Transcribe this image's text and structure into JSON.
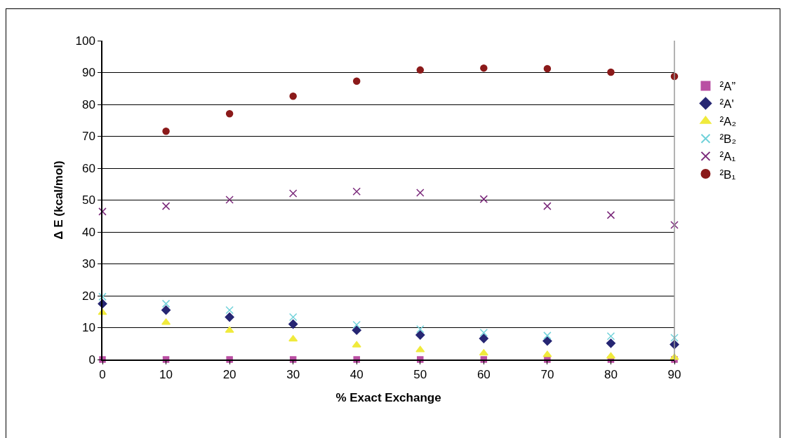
{
  "chart_data": {
    "type": "scatter",
    "xlabel": "% Exact Exchange",
    "ylabel": "Δ E (kcal/mol)",
    "x": [
      0,
      10,
      20,
      30,
      40,
      50,
      60,
      70,
      80,
      90
    ],
    "xlim": [
      0,
      90
    ],
    "xticks": [
      0,
      10,
      20,
      30,
      40,
      50,
      60,
      70,
      80,
      90
    ],
    "ylim": [
      0,
      100
    ],
    "yticks": [
      0,
      10,
      20,
      30,
      40,
      50,
      60,
      70,
      80,
      90,
      100
    ],
    "grid": "y",
    "legend": "right",
    "series": [
      {
        "name": "²A”",
        "color": "#b94fa3",
        "marker": "square",
        "values": [
          0,
          0,
          0,
          0,
          0,
          0,
          0,
          0,
          0,
          0
        ]
      },
      {
        "name": "²A'",
        "color": "#262673",
        "marker": "diamond",
        "values": [
          17.5,
          15.5,
          13.3,
          11.1,
          9.2,
          7.7,
          6.6,
          5.8,
          5.1,
          4.7
        ]
      },
      {
        "name": "²A₂",
        "color": "#f0ea3c",
        "marker": "triangle",
        "values": [
          14.7,
          11.6,
          9.1,
          6.4,
          4.5,
          3.0,
          2.0,
          1.5,
          1.0,
          0.6
        ]
      },
      {
        "name": "²B₂",
        "color": "#72d2da",
        "marker": "cross",
        "values": [
          19.7,
          17.5,
          15.5,
          13.3,
          10.9,
          9.5,
          8.4,
          7.5,
          7.3,
          6.8
        ]
      },
      {
        "name": "²A₁",
        "color": "#7b2a7b",
        "marker": "cross",
        "values": [
          46.4,
          48.1,
          50.1,
          52.1,
          52.7,
          52.3,
          50.3,
          48.1,
          45.3,
          42.2
        ]
      },
      {
        "name": "²B₁",
        "color": "#8b1a1a",
        "marker": "circle",
        "values": [
          null,
          71.6,
          77.1,
          82.6,
          87.3,
          90.8,
          91.4,
          91.2,
          90.1,
          88.8
        ]
      }
    ]
  }
}
